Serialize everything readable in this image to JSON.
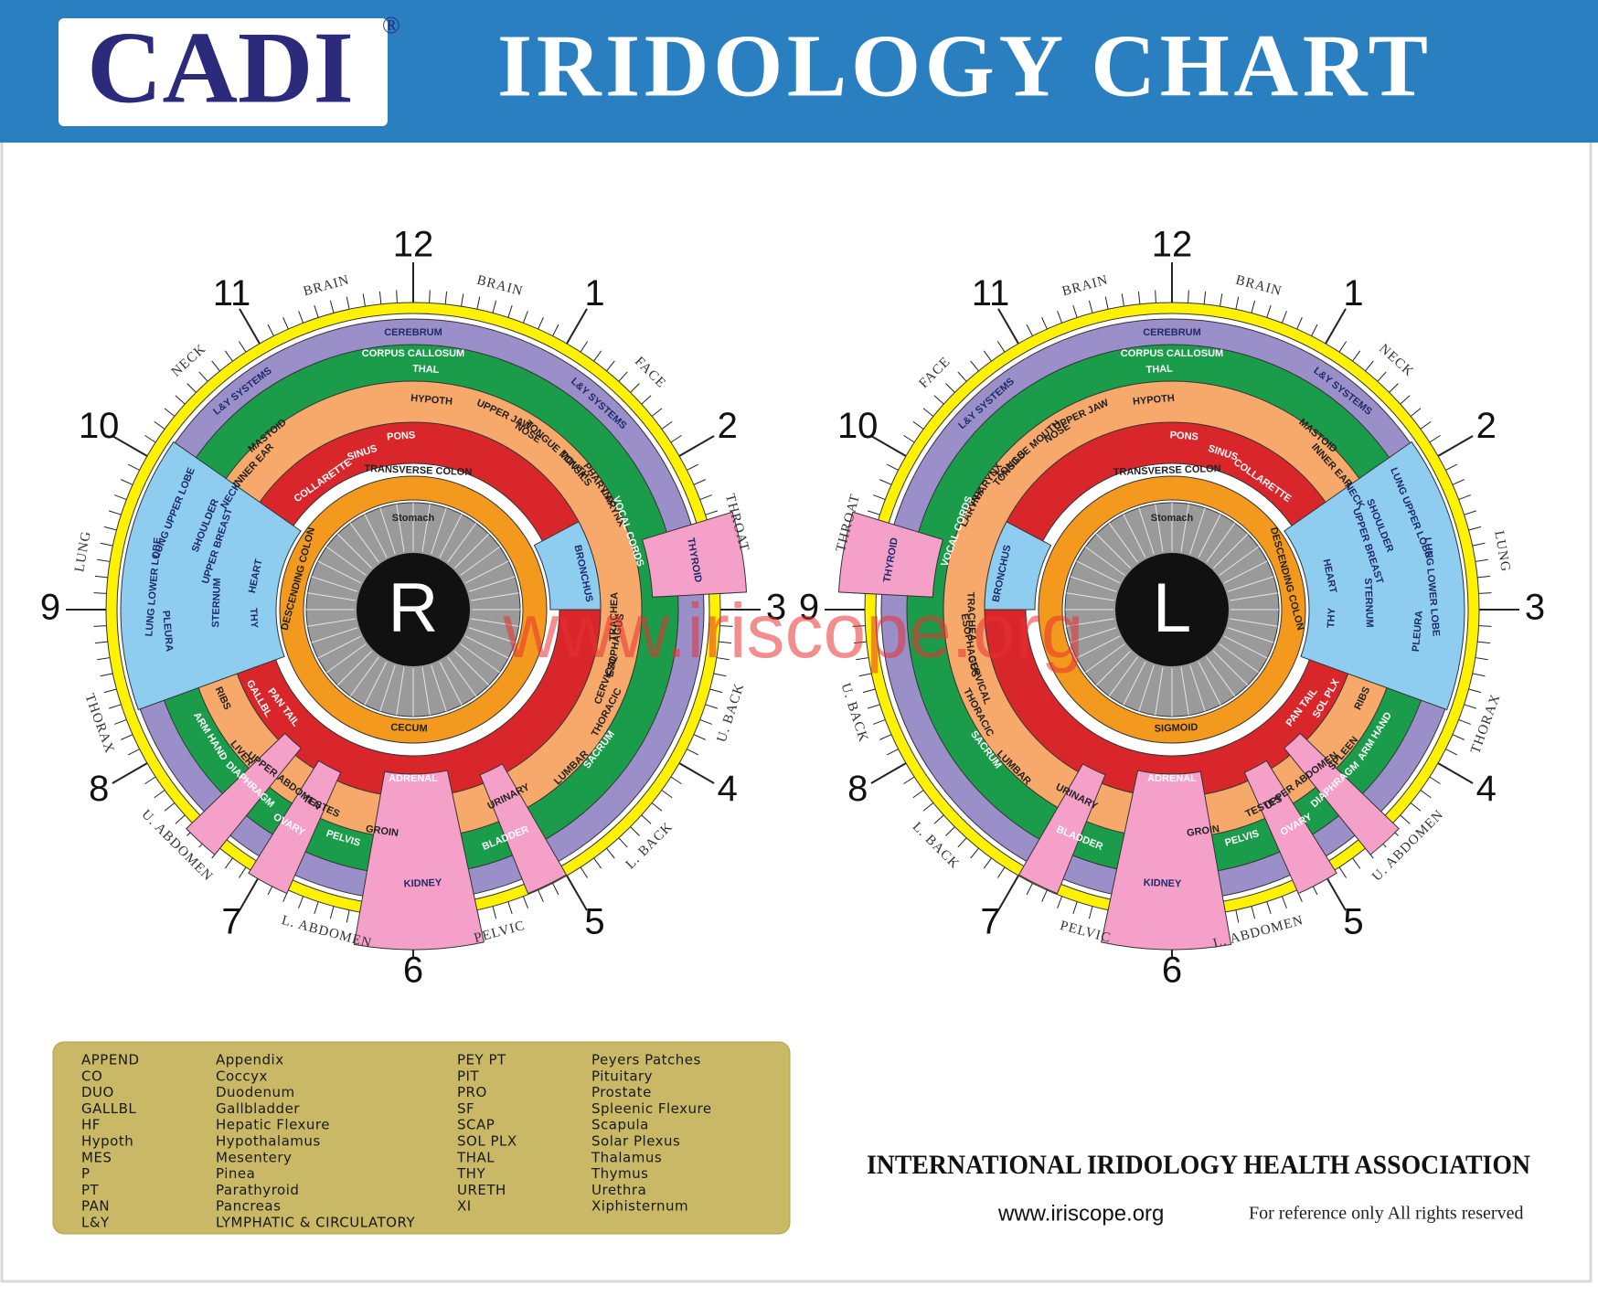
{
  "header": {
    "logo": "CADI",
    "registered": "®",
    "title": "IRIDOLOGY CHART"
  },
  "watermark": "www.iriscope.org",
  "irises": [
    {
      "pupil": "R",
      "hours": [
        "12",
        "1",
        "2",
        "3",
        "4",
        "5",
        "6",
        "7",
        "8",
        "9",
        "10",
        "11"
      ],
      "zones": [
        "BRAIN",
        "BRAIN",
        "FACE",
        "THROAT",
        "U. BACK",
        "L. BACK",
        "PELVIC",
        "L. ABDOMEN",
        "U. ABDOMEN",
        "THORAX",
        "LUNG",
        "NECK"
      ],
      "regions": [
        "CEREBRUM",
        "CORPUS CALLOSUM",
        "THAL",
        "HYPOTH",
        "PONS",
        "SINUS",
        "COLLARETTE",
        "TRANSVERSE COLON",
        "L&Y SYSTEMS",
        "L&Y SYSTEMS",
        "NECK",
        "SHOULDER",
        "INNER EAR",
        "MASTOID",
        "UPPER JAW",
        "NOSE",
        "TONGUE MOUTH",
        "TONSILS",
        "PHARYNX",
        "LARYNX",
        "VOCAL CORDS",
        "THYROID",
        "TRACHEA",
        "ESOPHAGUS",
        "BRONCHUS",
        "CERVICAL",
        "THORACIC",
        "LUMBAR",
        "SACRUM",
        "URINARY",
        "BLADDER",
        "KIDNEY",
        "ADRENAL",
        "PELVIS",
        "GROIN",
        "OVARY",
        "TESTES",
        "UPPER ABDOMEN",
        "DIAPHRAGM",
        "LIVER",
        "ARM HAND",
        "RIBS",
        "GALLBL",
        "PAN TAIL",
        "THY",
        "LUNG UPPER LOBE",
        "LUNG LOWER LOBE",
        "PLEURA",
        "UPPER BREAST",
        "STERNUM",
        "HEART",
        "CECUM",
        "DESCENDING COLON",
        "Stomach"
      ]
    },
    {
      "pupil": "L",
      "hours": [
        "12",
        "1",
        "2",
        "3",
        "4",
        "5",
        "6",
        "7",
        "8",
        "9",
        "10",
        "11"
      ],
      "zones": [
        "BRAIN",
        "BRAIN",
        "FACE",
        "THROAT",
        "U. BACK",
        "L. BACK",
        "PELVIC",
        "L. ABDOMEN",
        "U. ABDOMEN",
        "THORAX",
        "LUNG",
        "NECK"
      ],
      "regions": [
        "CEREBRUM",
        "CORPUS CALLOSUM",
        "THAL",
        "HYPOTH",
        "PONS",
        "SINUS",
        "COLLARETTE",
        "TRANSVERSE COLON",
        "L&Y SYSTEMS",
        "L&Y SYSTEMS",
        "NECK",
        "SHOULDER",
        "INNER EAR",
        "MASTOID",
        "UPPER JAW",
        "NOSE",
        "TONGUE MOUTH",
        "TONSILS",
        "PHARYNX",
        "LARYNX",
        "VOCAL CORDS",
        "THYROID",
        "TRACHEA",
        "ESOPHAGUS",
        "BRONCHUS",
        "CERVICAL",
        "THORACIC",
        "LUMBAR",
        "SACRUM",
        "URINARY",
        "BLADDER",
        "KIDNEY",
        "ADRENAL",
        "PELVIS",
        "GROIN",
        "OVARY",
        "TESTES",
        "UPPER ABDOMEN",
        "DIAPHRAGM",
        "SPLEEN",
        "ARM HAND",
        "RIBS",
        "SOL PLX",
        "PAN TAIL",
        "THY",
        "LUNG UPPER LOBE",
        "LUNG LOWER LOBE",
        "PLEURA",
        "UPPER BREAST",
        "STERNUM",
        "HEART",
        "SIGMOID",
        "DESCENDING COLON",
        "Stomach"
      ]
    }
  ],
  "legend": {
    "columns": [
      [
        [
          "APPEND",
          "Appendix"
        ],
        [
          "CO",
          "Coccyx"
        ],
        [
          "DUO",
          "Duodenum"
        ],
        [
          "GALLBL",
          "Gallbladder"
        ],
        [
          "HF",
          "Hepatic Flexure"
        ],
        [
          "Hypoth",
          "Hypothalamus"
        ],
        [
          "MES",
          "Mesentery"
        ],
        [
          "P",
          "Pinea"
        ],
        [
          "PT",
          "Parathyroid"
        ],
        [
          "PAN",
          "Pancreas"
        ],
        [
          "L&Y",
          "LYMPHATIC & CIRCULATORY"
        ]
      ],
      [
        [
          "PEY PT",
          "Peyers Patches"
        ],
        [
          "PIT",
          "Pituitary"
        ],
        [
          "PRO",
          "Prostate"
        ],
        [
          "SF",
          "Spleenic Flexure"
        ],
        [
          "SCAP",
          "Scapula"
        ],
        [
          "SOL PLX",
          "Solar Plexus"
        ],
        [
          "THAL",
          "Thalamus"
        ],
        [
          "THY",
          "Thymus"
        ],
        [
          "URETH",
          "Urethra"
        ],
        [
          "XI",
          "Xiphisternum"
        ]
      ]
    ]
  },
  "footer": {
    "association": "INTERNATIONAL IRIDOLOGY HEALTH ASSOCIATION",
    "website": "www.iriscope.org",
    "note": "For reference only All rights reserved"
  }
}
